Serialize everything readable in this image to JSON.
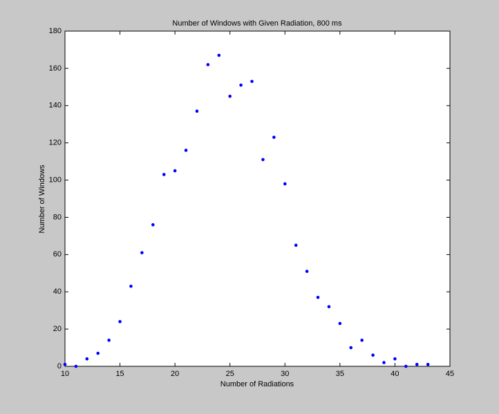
{
  "chart_data": {
    "type": "scatter",
    "title": "Number of Windows with Given Radiation, 800 ms",
    "x_label": "Number of Radiations",
    "y_label": "Number of Windows",
    "x": [
      10,
      11,
      12,
      13,
      14,
      15,
      16,
      17,
      18,
      19,
      20,
      21,
      22,
      23,
      24,
      25,
      26,
      27,
      28,
      29,
      30,
      31,
      32,
      33,
      34,
      35,
      36,
      37,
      38,
      39,
      40,
      41,
      42,
      43
    ],
    "values": [
      1,
      0,
      4,
      7,
      14,
      24,
      43,
      61,
      76,
      103,
      105,
      116,
      137,
      162,
      167,
      145,
      151,
      153,
      111,
      123,
      98,
      65,
      51,
      37,
      32,
      23,
      10,
      14,
      6,
      2,
      4,
      0,
      1,
      1
    ],
    "color": "#0000ff",
    "xlim": [
      10,
      45
    ],
    "xticks": [
      10,
      15,
      20,
      25,
      30,
      35,
      40,
      45
    ],
    "ylim": [
      0,
      180
    ],
    "yticks": [
      0,
      20,
      40,
      60,
      80,
      100,
      120,
      140,
      160,
      180
    ],
    "grid": false
  }
}
